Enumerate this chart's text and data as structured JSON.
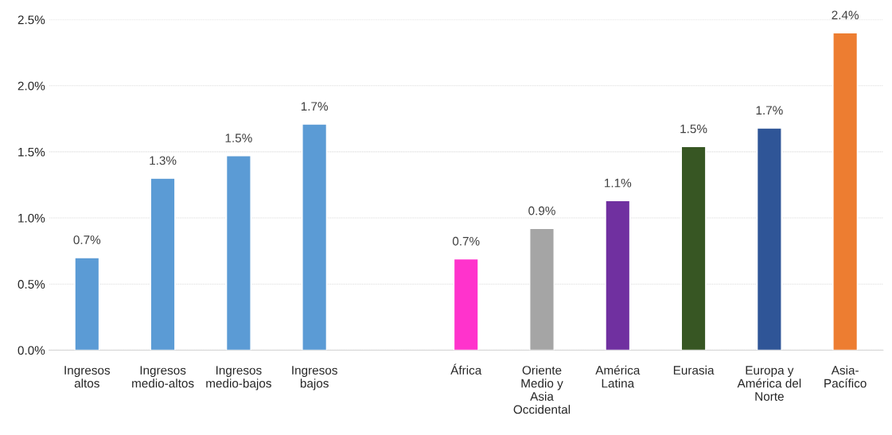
{
  "chart_data": {
    "type": "bar",
    "categories": [
      "Ingresos\naltos",
      "Ingresos\nmedio-altos",
      "Ingresos\nmedio-bajos",
      "Ingresos\nbajos",
      null,
      "África",
      "Oriente\nMedio y\nAsia\nOccidental",
      "América\nLatina",
      "Eurasia",
      "Europa y\nAmérica del\nNorte",
      "Asia-\nPacífico"
    ],
    "values": [
      0.7,
      1.3,
      1.47,
      1.71,
      null,
      0.69,
      0.92,
      1.13,
      1.54,
      1.68,
      2.4
    ],
    "colors": [
      "#5b9bd5",
      "#5b9bd5",
      "#5b9bd5",
      "#5b9bd5",
      null,
      "#ff33cc",
      "#a5a5a5",
      "#7030a0",
      "#375623",
      "#2f5597",
      "#ed7d31"
    ],
    "value_labels": [
      "0.7%",
      "1.3%",
      "1.5%",
      "1.7%",
      null,
      "0.7%",
      "0.9%",
      "1.1%",
      "1.5%",
      "1.7%",
      "2.4%"
    ],
    "ylim": [
      0,
      2.5
    ],
    "yticks": [
      {
        "value": 0,
        "label": "0.0%"
      },
      {
        "value": 0.5,
        "label": "0.5%"
      },
      {
        "value": 1.0,
        "label": "1.0%"
      },
      {
        "value": 1.5,
        "label": "1.5%"
      },
      {
        "value": 2.0,
        "label": "2.0%"
      },
      {
        "value": 2.5,
        "label": "2.5%"
      }
    ],
    "grid": "y"
  }
}
